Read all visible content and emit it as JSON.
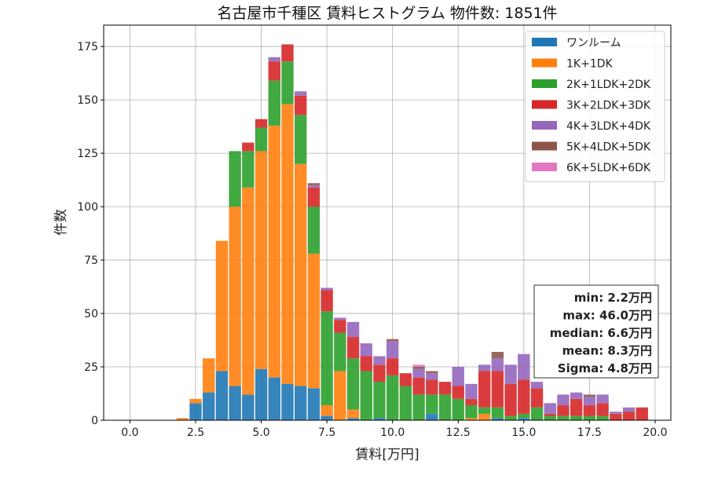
{
  "chart_data": {
    "type": "bar",
    "stacked": true,
    "title": "名古屋市千種区 賃料ヒストグラム 物件数: 1851件",
    "xlabel": "賃料[万円]",
    "ylabel": "件数",
    "xlim": [
      -1.0,
      20.6
    ],
    "ylim": [
      0,
      185
    ],
    "xticks": [
      0.0,
      2.5,
      5.0,
      7.5,
      10.0,
      12.5,
      15.0,
      17.5,
      20.0
    ],
    "yticks": [
      0,
      25,
      50,
      75,
      100,
      125,
      150,
      175
    ],
    "xtick_labels": [
      "0.0",
      "2.5",
      "5.0",
      "7.5",
      "10.0",
      "12.5",
      "15.0",
      "17.5",
      "20.0"
    ],
    "ytick_labels": [
      "0",
      "25",
      "50",
      "75",
      "100",
      "125",
      "150",
      "175"
    ],
    "bin_width": 0.5,
    "bin_starts": [
      1.75,
      2.25,
      2.75,
      3.25,
      3.75,
      4.25,
      4.75,
      5.25,
      5.75,
      6.25,
      6.75,
      7.25,
      7.75,
      8.25,
      8.75,
      9.25,
      9.75,
      10.25,
      10.75,
      11.25,
      11.75,
      12.25,
      12.75,
      13.25,
      13.75,
      14.25,
      14.75,
      15.25,
      15.75,
      16.25,
      16.75,
      17.25,
      17.75,
      18.25,
      18.75,
      19.25
    ],
    "grid": true,
    "legend_position": "top-right",
    "series": [
      {
        "name": "ワンルーム",
        "color": "#1f77b4",
        "values": [
          0,
          8,
          13,
          23,
          16,
          12,
          24,
          20,
          17,
          16,
          15,
          2,
          0,
          1,
          0,
          1,
          0,
          0,
          0,
          3,
          0,
          0,
          0,
          0,
          1,
          0,
          1,
          0,
          0,
          0,
          0,
          0,
          0,
          0,
          0,
          0
        ]
      },
      {
        "name": "1K+1DK",
        "color": "#ff7f0e",
        "values": [
          1,
          2,
          16,
          61,
          84,
          97,
          102,
          118,
          131,
          104,
          63,
          5,
          23,
          4,
          0,
          0,
          0,
          0,
          0,
          0,
          0,
          0,
          1,
          3,
          0,
          0,
          0,
          0,
          0,
          0,
          0,
          0,
          0,
          0,
          0,
          0
        ]
      },
      {
        "name": "2K+1LDK+2DK",
        "color": "#2ca02c",
        "values": [
          0,
          0,
          0,
          0,
          26,
          17,
          11,
          21,
          20,
          23,
          22,
          44,
          18,
          24,
          23,
          17,
          21,
          16,
          12,
          9,
          12,
          10,
          6,
          3,
          5,
          2,
          2,
          6,
          2,
          2,
          2,
          2,
          2,
          0,
          0,
          0
        ]
      },
      {
        "name": "3K+2LDK+3DK",
        "color": "#d62728",
        "values": [
          0,
          0,
          0,
          0,
          0,
          4,
          4,
          9,
          8,
          9,
          9,
          10,
          6,
          10,
          7,
          8,
          8,
          6,
          8,
          7,
          6,
          6,
          3,
          17,
          17,
          15,
          16,
          9,
          1,
          5,
          8,
          5,
          6,
          3,
          4,
          6
        ]
      },
      {
        "name": "4K+3LDK+4DK",
        "color": "#9467bd",
        "values": [
          0,
          0,
          0,
          0,
          0,
          0,
          0,
          2,
          0,
          2,
          1,
          1,
          1,
          7,
          6,
          4,
          8,
          0,
          4,
          3,
          0,
          9,
          7,
          3,
          6,
          9,
          12,
          3,
          5,
          5,
          3,
          4,
          4,
          1,
          2,
          0
        ]
      },
      {
        "name": "5K+4LDK+5DK",
        "color": "#8c564b",
        "values": [
          0,
          0,
          0,
          0,
          0,
          0,
          0,
          0,
          0,
          0,
          1,
          0,
          0,
          0,
          0,
          0,
          1,
          0,
          1,
          1,
          0,
          0,
          0,
          0,
          3,
          0,
          0,
          0,
          0,
          0,
          0,
          1,
          0,
          0,
          0,
          0
        ]
      },
      {
        "name": "6K+5LDK+6DK",
        "color": "#e377c2",
        "values": [
          0,
          0,
          0,
          0,
          0,
          0,
          0,
          0,
          0,
          0,
          0,
          0,
          0,
          0,
          0,
          0,
          0,
          0,
          1,
          0,
          0,
          0,
          0,
          0,
          0,
          0,
          0,
          0,
          0,
          0,
          0,
          0,
          0,
          0,
          0,
          0
        ]
      }
    ],
    "stats": [
      "min: 2.2万円",
      "max: 46.0万円",
      "median: 6.6万円",
      "mean: 8.3万円",
      "Sigma: 4.8万円"
    ]
  }
}
